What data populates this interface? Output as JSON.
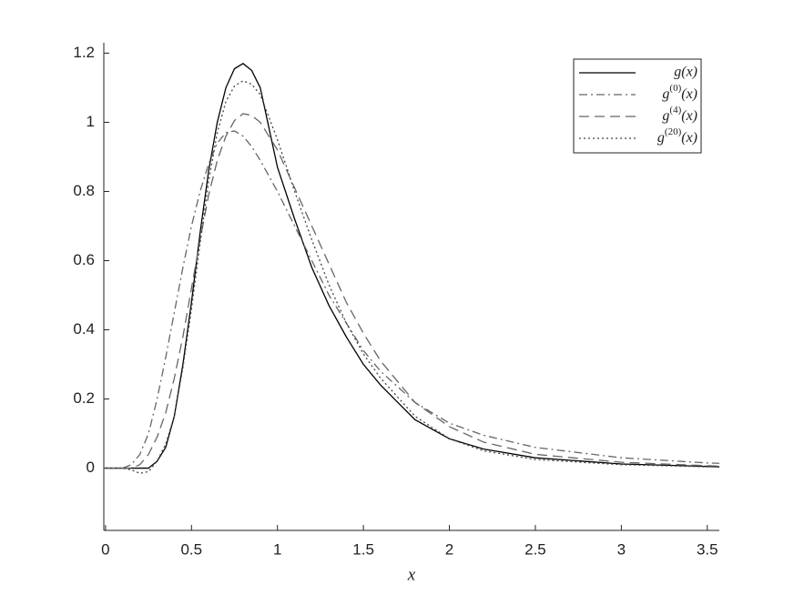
{
  "chart_data": {
    "type": "line",
    "x_label": "x",
    "x": [
      0,
      0.1,
      0.15,
      0.2,
      0.25,
      0.3,
      0.35,
      0.4,
      0.45,
      0.5,
      0.55,
      0.6,
      0.65,
      0.7,
      0.75,
      0.8,
      0.85,
      0.9,
      1.0,
      1.1,
      1.2,
      1.3,
      1.4,
      1.5,
      1.6,
      1.8,
      2.0,
      2.2,
      2.5,
      3.0,
      3.5,
      3.57
    ],
    "series": [
      {
        "name": "g(x)",
        "color": "#000000",
        "dash": "solid",
        "values": [
          0,
          0,
          0,
          0,
          0,
          0.02,
          0.06,
          0.15,
          0.3,
          0.48,
          0.68,
          0.86,
          1.0,
          1.1,
          1.155,
          1.17,
          1.15,
          1.1,
          0.87,
          0.72,
          0.58,
          0.47,
          0.38,
          0.3,
          0.24,
          0.14,
          0.085,
          0.055,
          0.03,
          0.012,
          0.005,
          0.004
        ]
      },
      {
        "name": "g(0)(x)",
        "color": "#666666",
        "dash": "dashdot",
        "values": [
          0,
          0,
          0.01,
          0.04,
          0.1,
          0.2,
          0.32,
          0.45,
          0.58,
          0.7,
          0.8,
          0.88,
          0.94,
          0.97,
          0.975,
          0.96,
          0.93,
          0.89,
          0.8,
          0.7,
          0.6,
          0.5,
          0.42,
          0.34,
          0.28,
          0.19,
          0.13,
          0.095,
          0.06,
          0.03,
          0.015,
          0.014
        ]
      },
      {
        "name": "g(4)(x)",
        "color": "#666666",
        "dash": "dashed",
        "values": [
          0,
          0,
          0,
          0.01,
          0.04,
          0.09,
          0.16,
          0.26,
          0.38,
          0.52,
          0.66,
          0.79,
          0.89,
          0.96,
          1.005,
          1.025,
          1.02,
          1.0,
          0.92,
          0.81,
          0.7,
          0.59,
          0.48,
          0.39,
          0.31,
          0.19,
          0.12,
          0.075,
          0.04,
          0.017,
          0.007,
          0.006
        ]
      },
      {
        "name": "g(20)(x)",
        "color": "#444444",
        "dash": "dotted",
        "values": [
          0,
          0,
          -0.005,
          -0.015,
          -0.01,
          0.02,
          0.07,
          0.15,
          0.29,
          0.46,
          0.65,
          0.83,
          0.97,
          1.06,
          1.105,
          1.12,
          1.11,
          1.08,
          0.95,
          0.8,
          0.66,
          0.53,
          0.42,
          0.33,
          0.26,
          0.15,
          0.085,
          0.05,
          0.025,
          0.01,
          0.004,
          0.004
        ]
      }
    ],
    "xlim": [
      -0.01,
      3.57
    ],
    "ylim": [
      -0.18,
      1.23
    ],
    "xticks": [
      0,
      0.5,
      1,
      1.5,
      2,
      2.5,
      3,
      3.5
    ],
    "yticks": [
      0,
      0.2,
      0.4,
      0.6,
      0.8,
      1,
      1.2
    ],
    "legend": "upper right",
    "grid": false
  }
}
